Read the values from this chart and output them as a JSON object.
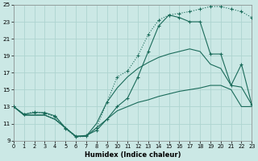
{
  "xlabel": "Humidex (Indice chaleur)",
  "xlim": [
    0,
    23
  ],
  "ylim": [
    9,
    25
  ],
  "yticks": [
    9,
    11,
    13,
    15,
    17,
    19,
    21,
    23,
    25
  ],
  "xticks": [
    0,
    1,
    2,
    3,
    4,
    5,
    6,
    7,
    8,
    9,
    10,
    11,
    12,
    13,
    14,
    15,
    16,
    17,
    18,
    19,
    20,
    21,
    22,
    23
  ],
  "bg_color": "#cbe8e5",
  "grid_color": "#aed4d0",
  "line_color": "#1a6b5a",
  "curve_dotted_markers": [
    13.0,
    12.1,
    12.4,
    12.2,
    11.8,
    10.4,
    9.4,
    9.5,
    10.5,
    13.5,
    16.5,
    17.2,
    19.0,
    21.5,
    23.2,
    23.8,
    24.0,
    24.2,
    24.5,
    24.8,
    24.8,
    24.5,
    24.2,
    23.5
  ],
  "curve_solid_markers": [
    13.0,
    12.1,
    12.3,
    12.3,
    11.9,
    10.5,
    9.5,
    9.6,
    10.2,
    11.5,
    13.0,
    14.0,
    16.5,
    19.5,
    22.5,
    23.8,
    23.5,
    23.0,
    23.0,
    19.2,
    19.2,
    15.5,
    18.0,
    13.2
  ],
  "curve_mid_solid": [
    13.0,
    12.0,
    12.0,
    12.0,
    11.5,
    10.5,
    9.5,
    9.5,
    11.0,
    13.5,
    15.2,
    16.5,
    17.5,
    18.2,
    18.8,
    19.2,
    19.5,
    19.8,
    19.5,
    18.0,
    17.5,
    15.5,
    15.3,
    13.2
  ],
  "curve_lower_solid": [
    13.0,
    12.0,
    12.0,
    12.0,
    11.5,
    10.5,
    9.5,
    9.5,
    10.5,
    11.5,
    12.5,
    13.0,
    13.5,
    13.8,
    14.2,
    14.5,
    14.8,
    15.0,
    15.2,
    15.5,
    15.5,
    15.0,
    13.0,
    13.0
  ]
}
